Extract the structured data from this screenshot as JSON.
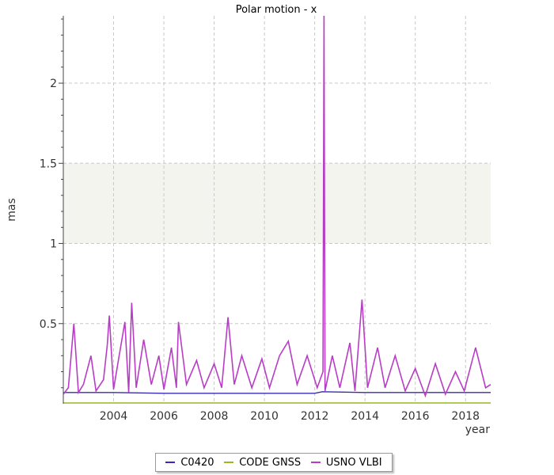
{
  "chart_data": {
    "type": "line",
    "title": "Polar motion - x",
    "xlabel": "year",
    "ylabel": "mas",
    "xlim": [
      2002.0,
      2019.0
    ],
    "ylim": [
      0.0,
      2.42
    ],
    "xticks": [
      2004,
      2006,
      2008,
      2010,
      2012,
      2014,
      2016,
      2018
    ],
    "yticks": [
      0.5,
      1,
      1.5,
      2
    ],
    "ytick_labels": [
      "0.5",
      "1",
      "1.5",
      "2"
    ],
    "grid": true,
    "shaded_band": [
      1.0,
      1.5
    ],
    "legend_position": "bottom-center",
    "series": [
      {
        "name": "C0420",
        "color": "#3a2bb0",
        "x": [
          2002.0,
          2004.0,
          2006.0,
          2008.0,
          2010.0,
          2012.0,
          2012.3,
          2014.0,
          2016.0,
          2018.0,
          2019.0
        ],
        "y": [
          0.07,
          0.07,
          0.065,
          0.065,
          0.065,
          0.065,
          0.075,
          0.07,
          0.07,
          0.07,
          0.07
        ]
      },
      {
        "name": "CODE GNSS",
        "color": "#9cb520",
        "x": [
          2002.0,
          2006.0,
          2010.0,
          2014.0,
          2019.0
        ],
        "y": [
          0.005,
          0.005,
          0.005,
          0.005,
          0.005
        ]
      },
      {
        "name": "USNO VLBI",
        "color": "#b83dc6",
        "x": [
          2002.0,
          2002.2,
          2002.42,
          2002.6,
          2002.8,
          2003.1,
          2003.3,
          2003.6,
          2003.75,
          2003.83,
          2004.0,
          2004.2,
          2004.45,
          2004.6,
          2004.72,
          2004.9,
          2005.2,
          2005.5,
          2005.8,
          2006.0,
          2006.3,
          2006.5,
          2006.58,
          2006.9,
          2007.3,
          2007.6,
          2008.0,
          2008.3,
          2008.55,
          2008.8,
          2009.1,
          2009.5,
          2009.9,
          2010.2,
          2010.6,
          2010.95,
          2011.3,
          2011.7,
          2012.1,
          2012.33,
          2012.37,
          2012.41,
          2012.7,
          2013.0,
          2013.4,
          2013.6,
          2013.88,
          2014.1,
          2014.5,
          2014.8,
          2015.2,
          2015.6,
          2016.0,
          2016.4,
          2016.8,
          2017.2,
          2017.6,
          2017.95,
          2018.4,
          2018.8,
          2019.0
        ],
        "y": [
          0.06,
          0.1,
          0.5,
          0.07,
          0.12,
          0.3,
          0.08,
          0.15,
          0.37,
          0.55,
          0.09,
          0.28,
          0.51,
          0.07,
          0.63,
          0.1,
          0.4,
          0.12,
          0.3,
          0.09,
          0.35,
          0.1,
          0.51,
          0.12,
          0.27,
          0.1,
          0.25,
          0.1,
          0.54,
          0.12,
          0.3,
          0.1,
          0.28,
          0.1,
          0.3,
          0.39,
          0.12,
          0.3,
          0.1,
          0.2,
          2.42,
          0.08,
          0.3,
          0.1,
          0.38,
          0.08,
          0.65,
          0.1,
          0.35,
          0.1,
          0.3,
          0.08,
          0.22,
          0.05,
          0.25,
          0.06,
          0.2,
          0.08,
          0.35,
          0.1,
          0.12
        ]
      }
    ]
  }
}
